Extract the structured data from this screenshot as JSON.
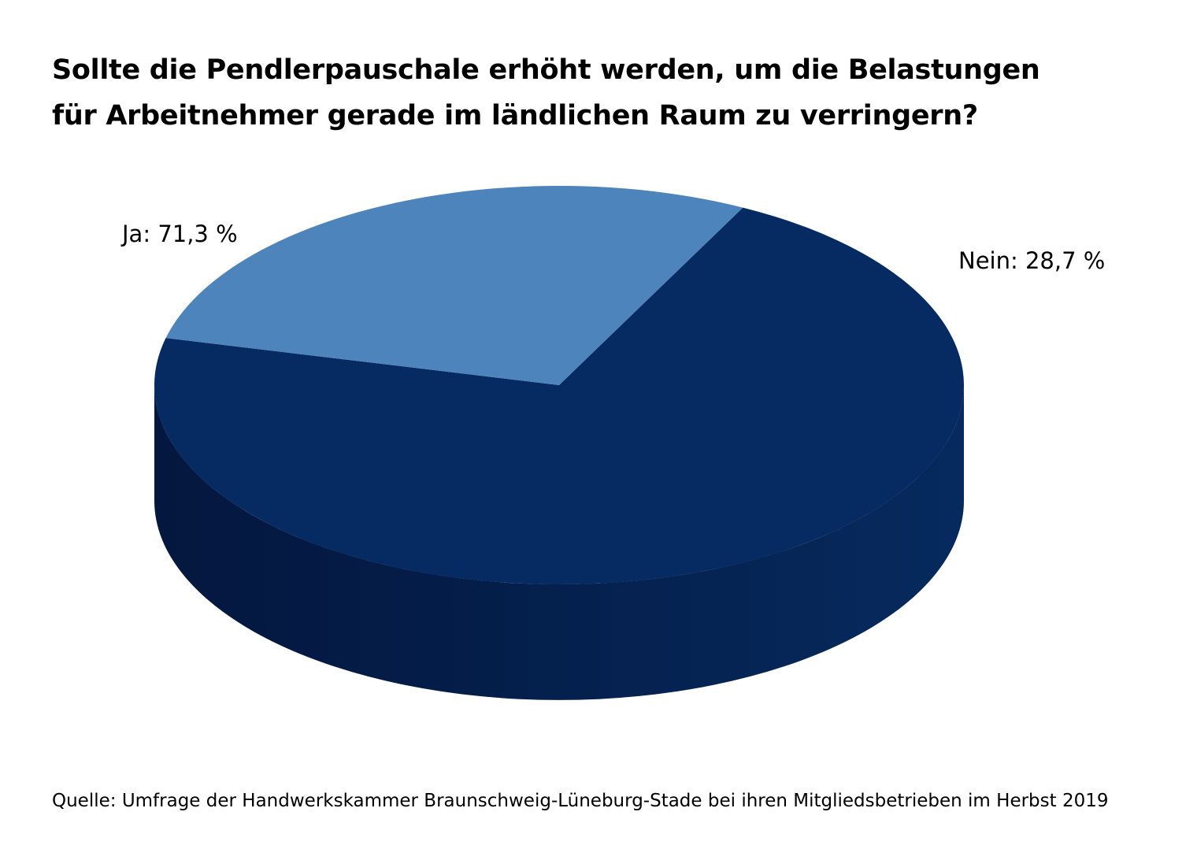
{
  "chart_data": {
    "type": "pie",
    "style": "3d",
    "title_lines": [
      "Sollte die Pendlerpauschale erhöht werden, um die Belastungen",
      "für Arbeitnehmer gerade im ländlichen Raum zu verringern?"
    ],
    "slices": [
      {
        "label": "Ja: 71,3 %",
        "value": 71.3,
        "color": "#062b62",
        "side_color": "#052558"
      },
      {
        "label": "Nein: 28,7 %",
        "value": 28.7,
        "color": "#4d84bb",
        "side_color": "#3f6f9e"
      }
    ],
    "legend": "none"
  },
  "source": "Quelle: Umfrage der Handwerkskammer Braunschweig-Lüneburg-Stade bei ihren Mitgliedsbetrieben im Herbst 2019"
}
